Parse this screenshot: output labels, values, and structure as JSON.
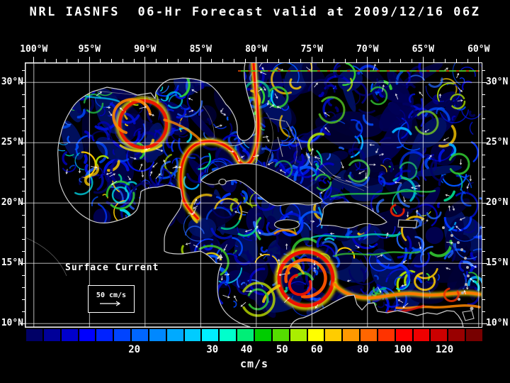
{
  "title": "NRL IASNFS  06-Hr Forecast valid at 2009/12/16 06Z",
  "axes": {
    "lon": {
      "labels": [
        "100°W",
        "95°W",
        "90°W",
        "85°W",
        "80°W",
        "75°W",
        "70°W",
        "65°W",
        "60°W"
      ],
      "values": [
        100,
        95,
        90,
        85,
        80,
        75,
        70,
        65,
        60
      ]
    },
    "lat": {
      "labels": [
        "30°N",
        "25°N",
        "20°N",
        "15°N",
        "10°N"
      ],
      "values": [
        30,
        25,
        20,
        15,
        10
      ]
    }
  },
  "annotations": {
    "legend_title": "Surface Current",
    "scale_label": "50 cm/s",
    "scale_arrow_icon": "right-arrow-icon"
  },
  "colorbar": {
    "unit": "cm/s",
    "ticks": [
      {
        "label": "20",
        "pct": 23.7
      },
      {
        "label": "30",
        "pct": 40.8
      },
      {
        "label": "40",
        "pct": 48.3
      },
      {
        "label": "50",
        "pct": 56.1
      },
      {
        "label": "60",
        "pct": 63.7
      },
      {
        "label": "80",
        "pct": 73.8
      },
      {
        "label": "100",
        "pct": 82.6
      },
      {
        "label": "120",
        "pct": 91.7
      }
    ],
    "segments": [
      "#000066",
      "#000099",
      "#0000cc",
      "#0000ff",
      "#0022ff",
      "#0044ff",
      "#0066ff",
      "#0088ff",
      "#00aaff",
      "#00ccff",
      "#00eeff",
      "#00ffcc",
      "#00ee77",
      "#00cc00",
      "#55dd00",
      "#aaee00",
      "#ffff00",
      "#ffcc00",
      "#ff9900",
      "#ff6600",
      "#ff3300",
      "#ff0000",
      "#ee0000",
      "#cc0000",
      "#990000",
      "#770000"
    ]
  },
  "map_colors": {
    "ocean_base": "#000000",
    "land": "#000000",
    "coastline": "#cccccc",
    "grid": "#ffffff",
    "frame": "#ffffff"
  }
}
